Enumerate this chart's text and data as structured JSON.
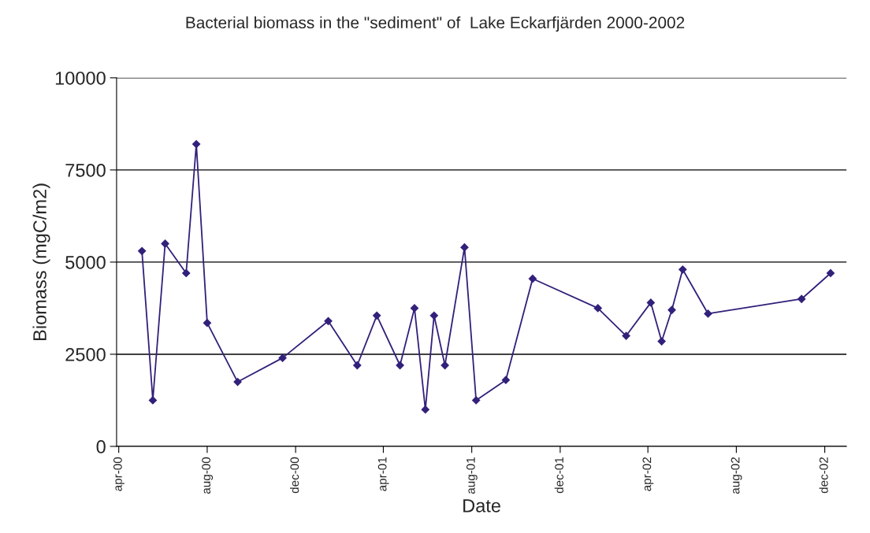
{
  "chart_data": {
    "type": "line",
    "title": "Bacterial biomass in the \"sediment\" of  Lake Eckarfjärden 2000-2002",
    "xlabel": "Date",
    "ylabel": "Biomass (mgC/m2)",
    "x": [
      "2000-05-03",
      "2000-05-18",
      "2000-06-04",
      "2000-07-03",
      "2000-07-17",
      "2000-08-01",
      "2000-09-12",
      "2000-11-13",
      "2001-01-15",
      "2001-02-24",
      "2001-03-23",
      "2001-04-24",
      "2001-05-14",
      "2001-05-29",
      "2001-06-10",
      "2001-06-25",
      "2001-07-22",
      "2001-08-07",
      "2001-09-17",
      "2001-10-24",
      "2002-01-22",
      "2002-03-02",
      "2002-04-05",
      "2002-04-20",
      "2002-05-04",
      "2002-05-19",
      "2002-06-23",
      "2002-10-30",
      "2002-12-09"
    ],
    "series": [
      {
        "color": "#33207a",
        "values": [
          5300,
          1250,
          5500,
          4700,
          8200,
          3350,
          1750,
          2400,
          3400,
          2200,
          3550,
          2200,
          3750,
          1000,
          3550,
          2200,
          5400,
          1250,
          1800,
          4550,
          3750,
          3000,
          3900,
          2850,
          3700,
          4800,
          3600,
          4000,
          4700
        ]
      }
    ],
    "xlim": [
      "2000-03-29",
      "2002-12-31"
    ],
    "xticks": [
      {
        "value": "2000-04-01",
        "label": "apr-00"
      },
      {
        "value": "2000-08-01",
        "label": "aug-00"
      },
      {
        "value": "2000-12-01",
        "label": "dec-00"
      },
      {
        "value": "2001-04-01",
        "label": "apr-01"
      },
      {
        "value": "2001-08-01",
        "label": "aug-01"
      },
      {
        "value": "2001-12-01",
        "label": "dec-01"
      },
      {
        "value": "2002-04-01",
        "label": "apr-02"
      },
      {
        "value": "2002-08-01",
        "label": "aug-02"
      },
      {
        "value": "2002-12-01",
        "label": "dec-02"
      }
    ],
    "ylim": [
      0,
      10000
    ],
    "yticks": [
      0,
      2500,
      5000,
      7500,
      10000
    ],
    "grid": "y",
    "marker": "diamond",
    "line_style": "solid"
  }
}
